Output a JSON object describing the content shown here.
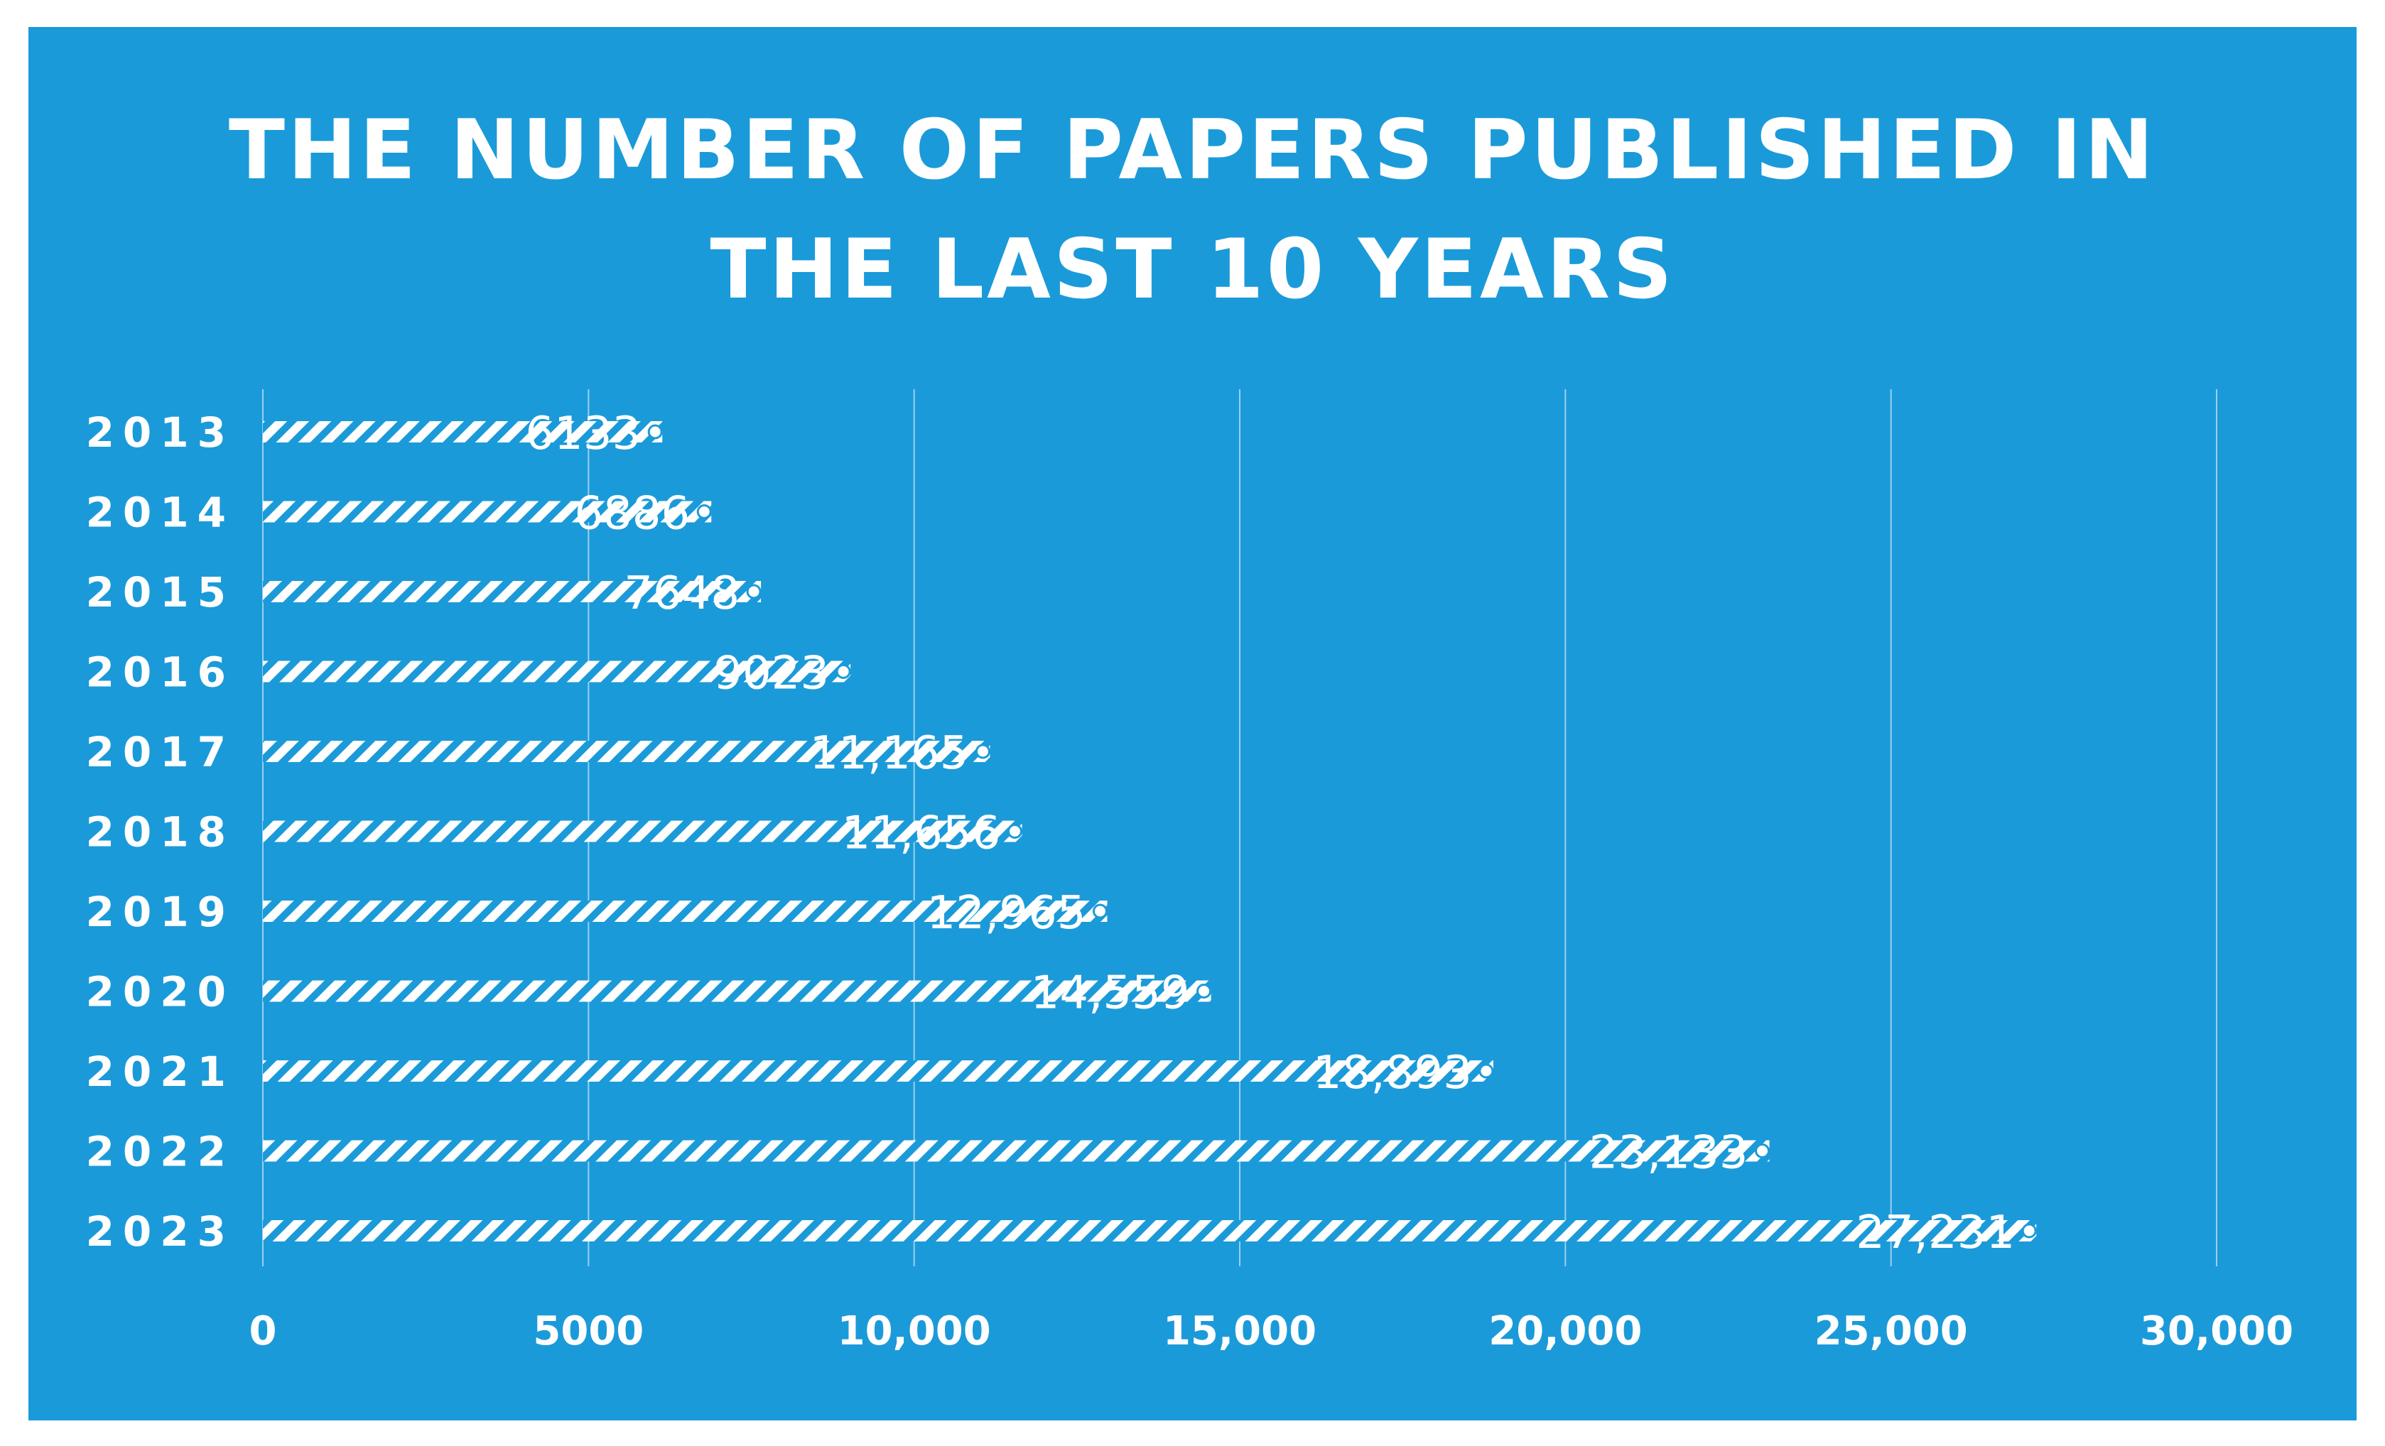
{
  "colors": {
    "background": "#1b9ad9",
    "text": "#ffffff",
    "bar_stripe": "#ffffff",
    "gridline": "#ffffff"
  },
  "chart_data": {
    "type": "bar",
    "orientation": "horizontal",
    "title": "THE NUMBER OF PAPERS PUBLISHED IN THE LAST 10 YEARS",
    "title_lines": [
      "THE NUMBER OF PAPERS PUBLISHED IN",
      "THE LAST 10 YEARS"
    ],
    "categories": [
      "2013",
      "2014",
      "2015",
      "2016",
      "2017",
      "2018",
      "2019",
      "2020",
      "2021",
      "2022",
      "2023"
    ],
    "values": [
      6133,
      6886,
      7648,
      9023,
      11165,
      11656,
      12965,
      14559,
      18893,
      23133,
      27231
    ],
    "data_labels": [
      "6133",
      "6886",
      "7648",
      "9023",
      "11,165",
      "11,656",
      "12,965",
      "14,559",
      "18,893",
      "23,133",
      "27,231"
    ],
    "xlim": [
      0,
      30000
    ],
    "x_ticks": [
      0,
      5000,
      10000,
      15000,
      20000,
      25000,
      30000
    ],
    "x_tick_labels": [
      "0",
      "5000",
      "10,000",
      "15,000",
      "20,000",
      "25,000",
      "30,000"
    ],
    "xlabel": "",
    "ylabel": "",
    "grid": true,
    "legend": "none",
    "bar_pattern": "diagonal-hatch"
  }
}
